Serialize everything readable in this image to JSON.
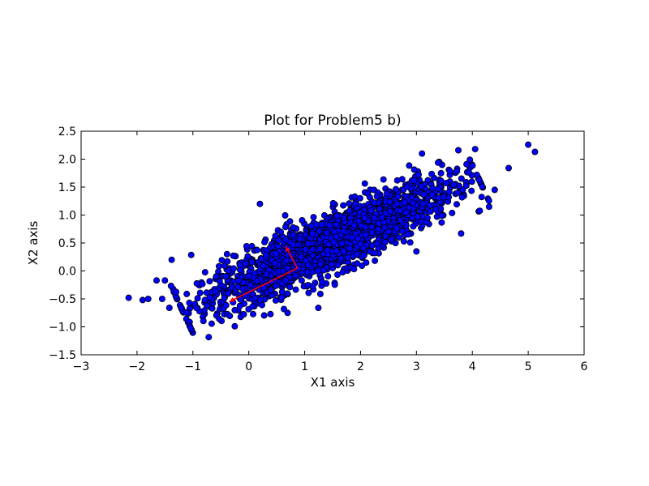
{
  "chart_data": {
    "type": "scatter",
    "title": "Plot for Problem5 b)",
    "xlabel": "X1 axis",
    "ylabel": "X2 axis",
    "xlim": [
      -3,
      6
    ],
    "ylim": [
      -1.5,
      2.5
    ],
    "xticks": [
      -3,
      -2,
      -1,
      0,
      1,
      2,
      3,
      4,
      5,
      6
    ],
    "xtick_labels": [
      "−3",
      "−2",
      "−1",
      "0",
      "1",
      "2",
      "3",
      "4",
      "5",
      "6"
    ],
    "yticks": [
      -1.5,
      -1.0,
      -0.5,
      0.0,
      0.5,
      1.0,
      1.5,
      2.0,
      2.5
    ],
    "ytick_labels": [
      "−1.5",
      "−1.0",
      "−0.5",
      "0.0",
      "0.5",
      "1.0",
      "1.5",
      "2.0",
      "2.5"
    ],
    "grid": false,
    "marker_color": "#0000ff",
    "marker_edge_color": "#000000",
    "cloud": {
      "count": 2200,
      "mean": [
        1.45,
        0.5
      ],
      "principal_direction": [
        0.9,
        0.42
      ],
      "principal_sd": 1.18,
      "minor_sd": 0.24
    },
    "outliers": [
      {
        "x": -2.15,
        "y": -0.48
      },
      {
        "x": -1.9,
        "y": -0.52
      },
      {
        "x": -1.8,
        "y": -0.5
      },
      {
        "x": -1.65,
        "y": -0.17
      },
      {
        "x": -1.55,
        "y": -0.5
      },
      {
        "x": -1.5,
        "y": -0.17
      },
      {
        "x": -1.42,
        "y": -0.66
      },
      {
        "x": -1.38,
        "y": 0.2
      },
      {
        "x": -0.25,
        "y": -0.99
      },
      {
        "x": 0.2,
        "y": 1.2
      },
      {
        "x": 3.1,
        "y": 2.1
      },
      {
        "x": 3.75,
        "y": 2.16
      },
      {
        "x": 4.05,
        "y": 2.18
      },
      {
        "x": 4.65,
        "y": 1.84
      },
      {
        "x": 5.0,
        "y": 2.26
      },
      {
        "x": 5.12,
        "y": 2.13
      },
      {
        "x": 4.3,
        "y": 1.15
      },
      {
        "x": 4.4,
        "y": 1.45
      },
      {
        "x": 3.8,
        "y": 0.67
      },
      {
        "x": 3.0,
        "y": 0.35
      }
    ],
    "vectors": [
      {
        "from": [
          0.87,
          0.05
        ],
        "to": [
          0.66,
          0.44
        ],
        "color": "#ff0000"
      },
      {
        "from": [
          0.87,
          0.05
        ],
        "to": [
          -0.35,
          -0.55
        ],
        "color": "#ff0000"
      }
    ]
  }
}
